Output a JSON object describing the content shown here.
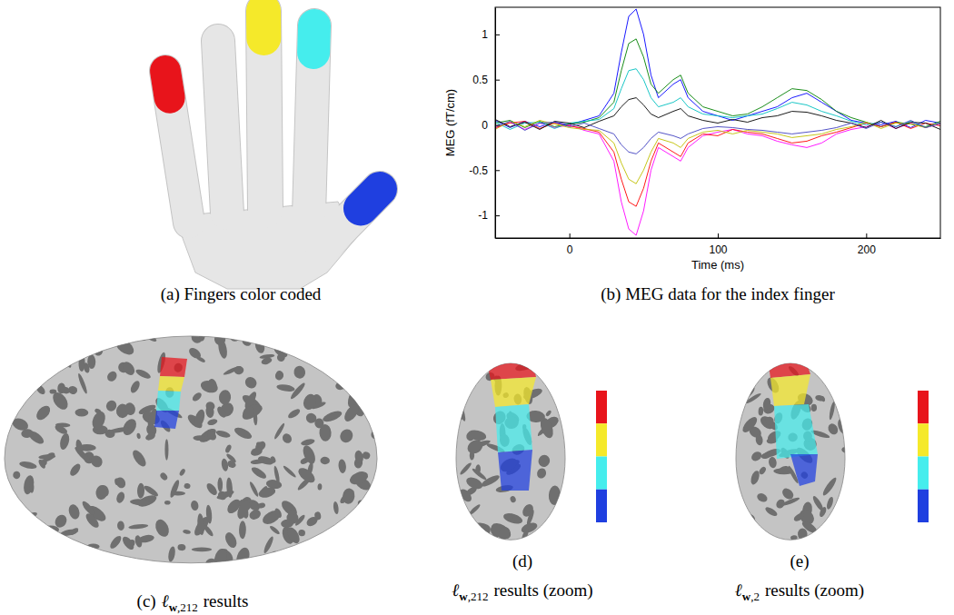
{
  "chart_data": {
    "type": "line",
    "xlabel": "Time (ms)",
    "ylabel": "MEG (fT/cm)",
    "x": [
      -50,
      -40,
      -30,
      -20,
      -10,
      0,
      10,
      20,
      30,
      35,
      40,
      45,
      50,
      55,
      60,
      70,
      75,
      80,
      90,
      100,
      110,
      120,
      130,
      140,
      150,
      160,
      170,
      180,
      190,
      200,
      210,
      220,
      230,
      240,
      250
    ],
    "series": [
      {
        "color": "#0000ff",
        "values": [
          0.05,
          -0.03,
          0.04,
          -0.02,
          0.03,
          0.0,
          0.05,
          0.1,
          0.35,
          0.8,
          1.2,
          1.28,
          1.0,
          0.55,
          0.3,
          0.45,
          0.5,
          0.3,
          0.15,
          0.1,
          0.05,
          0.1,
          0.15,
          0.2,
          0.3,
          0.35,
          0.25,
          0.15,
          0.05,
          0.02,
          0.0,
          0.04,
          -0.03,
          0.05,
          0.02
        ]
      },
      {
        "color": "#ff00ff",
        "values": [
          -0.04,
          0.03,
          -0.05,
          0.02,
          -0.03,
          0.0,
          -0.06,
          -0.1,
          -0.4,
          -0.85,
          -1.15,
          -1.22,
          -0.95,
          -0.5,
          -0.25,
          -0.35,
          -0.4,
          -0.25,
          -0.12,
          -0.08,
          -0.05,
          -0.1,
          -0.12,
          -0.18,
          -0.22,
          -0.25,
          -0.2,
          -0.1,
          -0.05,
          -0.02,
          0.03,
          -0.04,
          0.02,
          -0.03,
          0.01
        ]
      },
      {
        "color": "#008000",
        "values": [
          0.02,
          0.05,
          -0.03,
          0.04,
          -0.02,
          0.01,
          0.03,
          0.08,
          0.25,
          0.6,
          0.9,
          0.95,
          0.75,
          0.45,
          0.35,
          0.5,
          0.55,
          0.35,
          0.2,
          0.15,
          0.1,
          0.12,
          0.2,
          0.3,
          0.4,
          0.38,
          0.28,
          0.15,
          0.08,
          0.03,
          -0.02,
          0.03,
          0.01,
          -0.02,
          0.04
        ]
      },
      {
        "color": "#ff0000",
        "values": [
          -0.03,
          0.02,
          0.04,
          -0.04,
          0.02,
          -0.01,
          -0.04,
          -0.08,
          -0.3,
          -0.6,
          -0.85,
          -0.9,
          -0.7,
          -0.4,
          -0.2,
          -0.3,
          -0.35,
          -0.2,
          -0.1,
          -0.12,
          -0.05,
          -0.08,
          -0.1,
          -0.15,
          -0.2,
          -0.18,
          -0.12,
          -0.08,
          -0.03,
          0.02,
          -0.02,
          0.03,
          -0.04,
          0.02,
          -0.01
        ]
      },
      {
        "color": "#00bfbf",
        "values": [
          0.03,
          -0.05,
          0.02,
          0.03,
          -0.04,
          0.02,
          0.04,
          0.06,
          0.18,
          0.4,
          0.6,
          0.62,
          0.5,
          0.3,
          0.2,
          0.25,
          0.3,
          0.2,
          0.12,
          0.1,
          0.08,
          0.1,
          0.12,
          0.18,
          0.25,
          0.22,
          0.15,
          0.1,
          0.04,
          0.0,
          0.03,
          -0.02,
          0.04,
          -0.03,
          0.02
        ]
      },
      {
        "color": "#bfbf00",
        "values": [
          -0.05,
          0.04,
          -0.02,
          0.05,
          0.01,
          -0.03,
          -0.05,
          -0.06,
          -0.2,
          -0.42,
          -0.6,
          -0.65,
          -0.5,
          -0.3,
          -0.15,
          -0.2,
          -0.25,
          -0.15,
          -0.08,
          -0.06,
          -0.1,
          -0.06,
          -0.08,
          -0.1,
          -0.14,
          -0.12,
          -0.1,
          -0.05,
          -0.02,
          0.03,
          -0.04,
          0.02,
          0.01,
          -0.03,
          0.02
        ]
      },
      {
        "color": "#000000",
        "values": [
          0.06,
          -0.02,
          0.03,
          -0.05,
          0.04,
          0.02,
          -0.03,
          0.04,
          0.1,
          0.2,
          0.28,
          0.3,
          0.22,
          0.12,
          0.08,
          0.15,
          0.18,
          0.1,
          0.05,
          0.02,
          0.06,
          0.03,
          0.08,
          0.1,
          0.15,
          0.14,
          0.1,
          0.05,
          0.02,
          -0.03,
          0.05,
          -0.04,
          0.03,
          0.02,
          -0.05
        ]
      },
      {
        "color": "#4040c0",
        "values": [
          -0.02,
          0.04,
          -0.06,
          0.02,
          0.03,
          -0.02,
          0.02,
          -0.04,
          -0.1,
          -0.22,
          -0.3,
          -0.32,
          -0.25,
          -0.15,
          -0.08,
          -0.12,
          -0.15,
          -0.1,
          -0.04,
          -0.02,
          -0.03,
          -0.05,
          -0.06,
          -0.08,
          -0.1,
          -0.08,
          -0.06,
          -0.03,
          0.02,
          -0.04,
          0.03,
          -0.02,
          0.05,
          -0.03,
          0.02
        ]
      }
    ],
    "xlim": [
      -50,
      250
    ],
    "ylim": [
      -1.25,
      1.3
    ],
    "xticks": [
      0,
      100,
      200
    ],
    "yticks": [
      -1,
      -0.5,
      0,
      0.5,
      1
    ],
    "grid": false
  },
  "figure": {
    "colors": [
      "#e8141b",
      "#f5e92a",
      "#45eded",
      "#1f3fe0"
    ],
    "panel_a": {
      "caption": "(a) Fingers color coded"
    },
    "panel_b": {
      "caption": "(b) MEG data for the index finger"
    },
    "panel_c": {
      "label": "(c)",
      "symbol": "ℓ",
      "subscript": "w,212",
      "text": "results"
    },
    "panel_d": {
      "label": "(d)",
      "symbol": "ℓ",
      "subscript": "w,212",
      "text": "results (zoom)"
    },
    "panel_e": {
      "label": "(e)",
      "symbol": "ℓ",
      "subscript": "w,2",
      "text": "results (zoom)"
    }
  }
}
